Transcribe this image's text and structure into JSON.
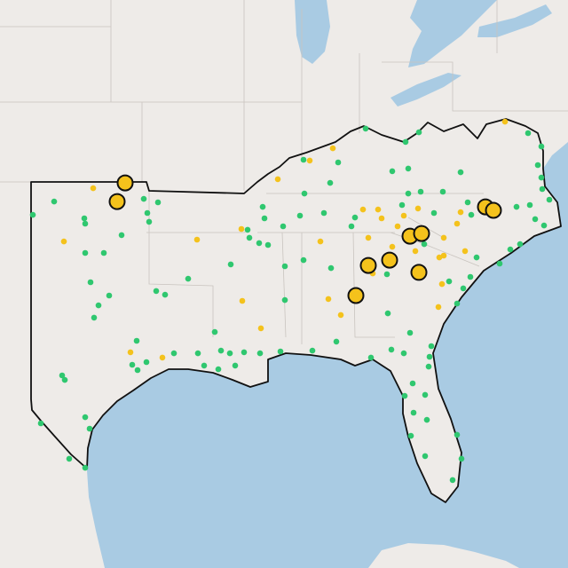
{
  "map": {
    "projection": {
      "lon0": -105,
      "lat0": 43.8,
      "x_scale": 20,
      "y_scale": 30
    },
    "layers": [
      {
        "color": "#2fc76f",
        "outline": false,
        "marker": "small",
        "points": [
          [
            -101.95,
            36.23
          ],
          [
            -103.15,
            35.73
          ],
          [
            -100.25,
            35.6
          ],
          [
            -100.2,
            35.4
          ],
          [
            -96.9,
            36.33
          ],
          [
            -96.1,
            36.2
          ],
          [
            -96.7,
            35.8
          ],
          [
            -96.6,
            35.47
          ],
          [
            -98.15,
            34.97
          ],
          [
            -100.2,
            34.3
          ],
          [
            -99.15,
            34.3
          ],
          [
            -94.4,
            33.33
          ],
          [
            -99.9,
            33.2
          ],
          [
            -98.85,
            32.7
          ],
          [
            -99.45,
            32.33
          ],
          [
            -96.2,
            32.87
          ],
          [
            -95.7,
            32.73
          ],
          [
            -99.7,
            31.87
          ],
          [
            -97.3,
            31.0
          ],
          [
            -97.55,
            30.1
          ],
          [
            -97.25,
            29.9
          ],
          [
            -96.75,
            30.2
          ],
          [
            -95.2,
            30.53
          ],
          [
            -93.85,
            30.53
          ],
          [
            -101.5,
            29.7
          ],
          [
            -101.35,
            29.53
          ],
          [
            -100.2,
            28.13
          ],
          [
            -99.95,
            27.7
          ],
          [
            -102.7,
            27.9
          ],
          [
            -101.1,
            26.57
          ],
          [
            -100.2,
            26.23
          ],
          [
            -92.0,
            33.87
          ],
          [
            -91.05,
            35.17
          ],
          [
            -90.95,
            34.87
          ],
          [
            -92.9,
            31.33
          ],
          [
            -92.55,
            30.63
          ],
          [
            -92.05,
            30.53
          ],
          [
            -91.75,
            30.07
          ],
          [
            -91.25,
            30.57
          ],
          [
            -90.35,
            30.53
          ],
          [
            -89.2,
            30.6
          ],
          [
            -92.7,
            29.93
          ],
          [
            -93.5,
            30.07
          ],
          [
            -88.95,
            32.53
          ],
          [
            -88.95,
            33.8
          ],
          [
            -87.9,
            34.03
          ],
          [
            -86.05,
            30.97
          ],
          [
            -87.4,
            30.63
          ],
          [
            -90.4,
            34.67
          ],
          [
            -89.9,
            34.6
          ],
          [
            -89.05,
            35.3
          ],
          [
            -90.2,
            36.03
          ],
          [
            -90.1,
            35.6
          ],
          [
            -84.4,
            38.97
          ],
          [
            -82.15,
            38.47
          ],
          [
            -81.4,
            38.83
          ],
          [
            -82.9,
            37.37
          ],
          [
            -82.0,
            37.47
          ],
          [
            -85.95,
            37.7
          ],
          [
            -87.9,
            37.8
          ],
          [
            -86.4,
            36.93
          ],
          [
            -87.85,
            36.53
          ],
          [
            -86.75,
            35.8
          ],
          [
            -88.1,
            35.7
          ],
          [
            -85.2,
            35.3
          ],
          [
            -85.0,
            35.63
          ],
          [
            -82.0,
            36.53
          ],
          [
            -81.3,
            36.6
          ],
          [
            -79.05,
            37.33
          ],
          [
            -75.25,
            38.8
          ],
          [
            -74.5,
            38.3
          ],
          [
            -74.7,
            37.6
          ],
          [
            -74.5,
            37.13
          ],
          [
            -78.65,
            36.2
          ],
          [
            -78.45,
            35.73
          ],
          [
            -75.9,
            36.03
          ],
          [
            -74.85,
            35.57
          ],
          [
            -74.35,
            35.33
          ],
          [
            -75.7,
            34.63
          ],
          [
            -76.25,
            34.43
          ],
          [
            -76.85,
            33.9
          ],
          [
            -78.15,
            34.13
          ],
          [
            -78.9,
            32.97
          ],
          [
            -79.25,
            32.4
          ],
          [
            -81.9,
            31.3
          ],
          [
            -83.15,
            32.03
          ],
          [
            -82.25,
            30.53
          ],
          [
            -82.95,
            30.67
          ],
          [
            -84.1,
            30.37
          ],
          [
            -80.7,
            30.8
          ],
          [
            -80.8,
            30.4
          ],
          [
            -80.85,
            30.03
          ],
          [
            -81.75,
            29.4
          ],
          [
            -82.2,
            28.93
          ],
          [
            -81.05,
            28.97
          ],
          [
            -81.7,
            28.3
          ],
          [
            -80.95,
            28.03
          ],
          [
            -81.85,
            27.43
          ],
          [
            -79.25,
            27.47
          ],
          [
            -81.05,
            26.67
          ],
          [
            -79.0,
            26.57
          ],
          [
            -79.5,
            25.77
          ],
          [
            -83.2,
            33.5
          ],
          [
            -86.35,
            33.73
          ],
          [
            -80.05,
            36.6
          ],
          [
            -80.55,
            35.8
          ],
          [
            -82.35,
            36.1
          ],
          [
            -81.1,
            34.63
          ],
          [
            -79.7,
            33.23
          ],
          [
            -78.5,
            33.4
          ],
          [
            -75.15,
            36.1
          ],
          [
            -74.05,
            36.3
          ],
          [
            -74.45,
            36.7
          ]
        ]
      },
      {
        "color": "#f4c21c",
        "outline": false,
        "marker": "small",
        "points": [
          [
            -99.75,
            36.73
          ],
          [
            -101.4,
            34.73
          ],
          [
            -93.9,
            34.8
          ],
          [
            -91.4,
            35.2
          ],
          [
            -91.35,
            32.5
          ],
          [
            -90.3,
            31.47
          ],
          [
            -97.65,
            30.57
          ],
          [
            -95.85,
            30.37
          ],
          [
            -89.35,
            37.07
          ],
          [
            -87.55,
            37.77
          ],
          [
            -86.25,
            38.23
          ],
          [
            -86.95,
            34.73
          ],
          [
            -86.5,
            32.57
          ],
          [
            -85.8,
            31.97
          ],
          [
            -84.55,
            35.93
          ],
          [
            -83.7,
            35.93
          ],
          [
            -83.5,
            35.6
          ],
          [
            -82.25,
            35.7
          ],
          [
            -81.45,
            35.97
          ],
          [
            -82.6,
            35.3
          ],
          [
            -84.25,
            34.87
          ],
          [
            -82.9,
            34.53
          ],
          [
            -81.6,
            34.37
          ],
          [
            -80.25,
            34.13
          ],
          [
            -80.0,
            34.2
          ],
          [
            -80.0,
            34.87
          ],
          [
            -78.8,
            34.37
          ],
          [
            -79.25,
            35.4
          ],
          [
            -79.05,
            35.83
          ],
          [
            -80.1,
            33.13
          ],
          [
            -80.3,
            32.27
          ],
          [
            -76.55,
            39.23
          ],
          [
            -84.0,
            33.53
          ]
        ]
      },
      {
        "color": "#f4c21c",
        "outline": true,
        "marker": "large",
        "points": [
          [
            -97.95,
            36.93
          ],
          [
            -98.4,
            36.23
          ],
          [
            -77.65,
            36.03
          ],
          [
            -77.2,
            35.9
          ],
          [
            -81.9,
            34.93
          ],
          [
            -81.25,
            35.03
          ],
          [
            -84.25,
            33.83
          ],
          [
            -83.05,
            34.03
          ],
          [
            -81.4,
            33.57
          ],
          [
            -84.95,
            32.7
          ]
        ]
      }
    ]
  }
}
